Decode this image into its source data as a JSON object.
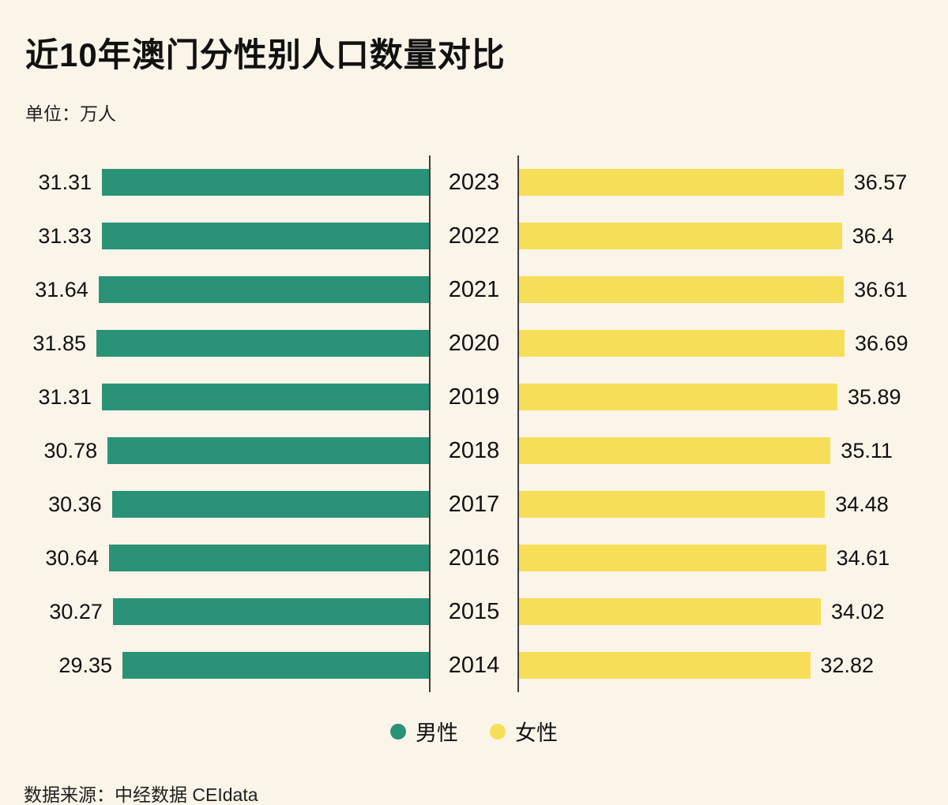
{
  "title": "近10年澳门分性别人口数量对比",
  "unit_label": "单位：万人",
  "source": "数据来源：中经数据 CEIdata",
  "colors": {
    "background": "#fbf5e9",
    "male": "#2a9277",
    "female": "#f7de58",
    "divider": "#3f3f3f"
  },
  "legend": [
    {
      "label": "男性",
      "color": "#2a9277"
    },
    {
      "label": "女性",
      "color": "#f7de58"
    }
  ],
  "chart_data": {
    "type": "bar",
    "orientation": "horizontal-bidirectional",
    "title": "近10年澳门分性别人口数量对比",
    "unit": "万人",
    "categories": [
      "2023",
      "2022",
      "2021",
      "2020",
      "2019",
      "2018",
      "2017",
      "2016",
      "2015",
      "2014"
    ],
    "series": [
      {
        "name": "男性",
        "values": [
          31.31,
          31.33,
          31.64,
          31.85,
          31.31,
          30.78,
          30.36,
          30.64,
          30.27,
          29.35
        ]
      },
      {
        "name": "女性",
        "values": [
          36.57,
          36.4,
          36.61,
          36.69,
          35.89,
          35.11,
          34.48,
          34.61,
          34.02,
          32.82
        ]
      }
    ],
    "legend_position": "bottom",
    "grid": false,
    "value_labels": true
  }
}
